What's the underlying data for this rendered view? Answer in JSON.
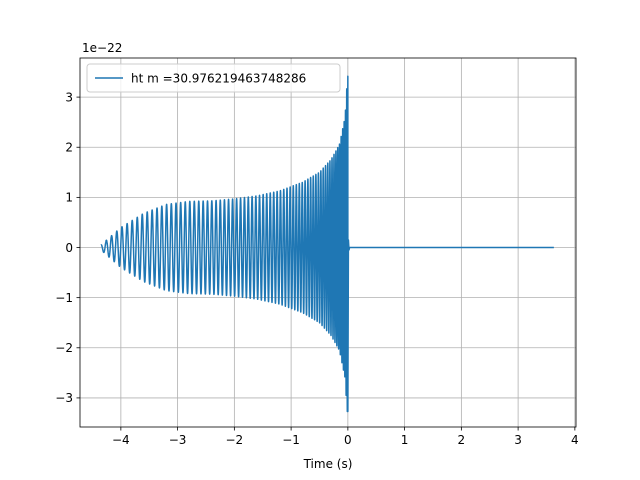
{
  "chart_data": {
    "type": "line",
    "title": "",
    "xlabel": "Time (s)",
    "ylabel": "",
    "y_offset_label": "1e−22",
    "xlim": [
      -4.72,
      4.02
    ],
    "ylim": [
      -3.58,
      3.78
    ],
    "xticks": [
      -4,
      -3,
      -2,
      -1,
      0,
      1,
      2,
      3,
      4
    ],
    "xtick_labels": [
      "−4",
      "−3",
      "−2",
      "−1",
      "0",
      "1",
      "2",
      "3",
      "4"
    ],
    "yticks": [
      -3,
      -2,
      -1,
      0,
      1,
      2,
      3
    ],
    "ytick_labels": [
      "−3",
      "−2",
      "−1",
      "0",
      "1",
      "2",
      "3"
    ],
    "grid": true,
    "legend_position": "upper-left",
    "colors": {
      "series": "#1f77b4",
      "grid": "#b0b0b0",
      "axes": "#000000",
      "legend_border": "#cccccc"
    },
    "series": [
      {
        "name": "ht m =30.976219463748286",
        "x_start": -4.35,
        "merger_time": 0.0,
        "x_end": 3.63,
        "envelope": {
          "t": [
            -4.35,
            -4.2,
            -4.0,
            -3.6,
            -3.2,
            -2.8,
            -2.4,
            -2.0,
            -1.6,
            -1.2,
            -0.8,
            -0.5,
            -0.3,
            -0.15,
            -0.05,
            -0.01,
            0.0
          ],
          "amplitude": [
            0.05,
            0.2,
            0.4,
            0.68,
            0.86,
            0.92,
            0.93,
            0.97,
            1.03,
            1.13,
            1.3,
            1.5,
            1.75,
            2.05,
            2.6,
            3.35,
            3.45
          ]
        },
        "min_value": -3.27,
        "max_value": 3.45,
        "cycles_visible": 70
      }
    ]
  }
}
